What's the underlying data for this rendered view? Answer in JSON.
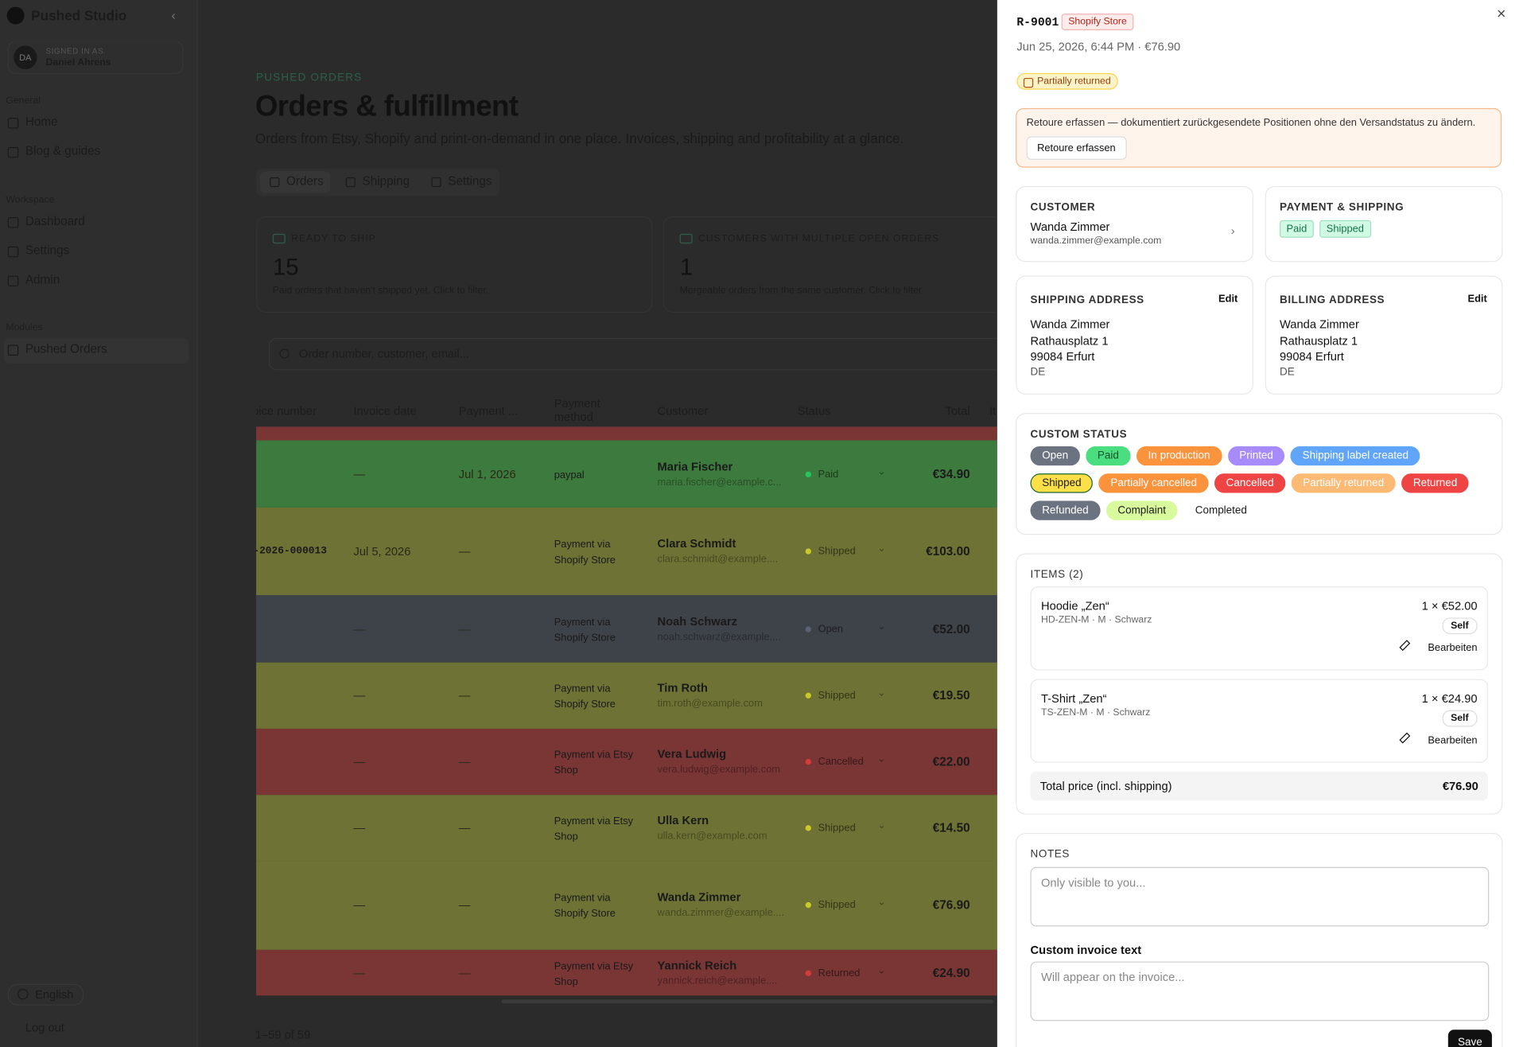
{
  "sidebar": {
    "brand": "Pushed Studio",
    "user": {
      "initials": "DA",
      "label": "SIGNED IN AS",
      "name": "Daniel Ahrens"
    },
    "groups": [
      {
        "title": "General",
        "items": [
          "Home",
          "Blog & guides"
        ]
      },
      {
        "title": "Workspace",
        "items": [
          "Dashboard",
          "Settings",
          "Admin"
        ]
      },
      {
        "title": "Modules",
        "items": [
          "Pushed Orders"
        ]
      }
    ],
    "language": "English",
    "logout": "Log out"
  },
  "main": {
    "eyebrow": "PUSHED ORDERS",
    "title": "Orders & fulfillment",
    "subtitle": "Orders from Etsy, Shopify and print-on-demand in one place. Invoices, shipping and profitability at a glance.",
    "tabs": [
      "Orders",
      "Shipping",
      "Settings"
    ],
    "stats": [
      {
        "label": "READY TO SHIP",
        "value": "15",
        "note": "Paid orders that haven't shipped yet. Click to filter."
      },
      {
        "label": "CUSTOMERS WITH MULTIPLE OPEN ORDERS",
        "value": "1",
        "note": "Mergeable orders from the same customer. Click to filter."
      }
    ],
    "search": "Order number, customer, email...",
    "table": {
      "columns": [
        "oice number",
        "Invoice date",
        "Payment ...",
        "Payment method",
        "Customer",
        "Status",
        "Total",
        "It"
      ],
      "rows": [
        {
          "color": "#3d7a3d",
          "date": "—",
          "paid": "Jul 1, 2026",
          "method": "paypal",
          "name": "Maria Fischer",
          "email": "maria.fischer@example.c...",
          "status": "Paid",
          "status_color": "#22c55e",
          "total": "€34.90"
        },
        {
          "color": "#6e7234",
          "invoice": "-2026-000013",
          "date": "Jul 5, 2026",
          "paid": "—",
          "method": "Payment via Shopify Store",
          "name": "Clara Schmidt",
          "email": "clara.schmidt@example....",
          "status": "Shipped",
          "status_color": "#c9c92a",
          "total": "€103.00"
        },
        {
          "color": "#3e4249",
          "date": "—",
          "paid": "—",
          "method": "Payment via Shopify Store",
          "name": "Noah Schwarz",
          "email": "noah.schwarz@example....",
          "status": "Open",
          "status_color": "#5b6270",
          "total": "€52.00"
        },
        {
          "color": "#6e7234",
          "date": "—",
          "paid": "—",
          "method": "Payment via Shopify Store",
          "name": "Tim Roth",
          "email": "tim.roth@example.com",
          "status": "Shipped",
          "status_color": "#c9c92a",
          "total": "€19.50"
        },
        {
          "color": "#7a3535",
          "date": "—",
          "paid": "—",
          "method": "Payment via Etsy Shop",
          "name": "Vera Ludwig",
          "email": "vera.ludwig@example.com",
          "status": "Cancelled",
          "status_color": "#d43b3b",
          "total": "€22.00"
        },
        {
          "color": "#6e7234",
          "date": "—",
          "paid": "—",
          "method": "Payment via Etsy Shop",
          "name": "Ulla Kern",
          "email": "ulla.kern@example.com",
          "status": "Shipped",
          "status_color": "#c9c92a",
          "total": "€14.50"
        },
        {
          "color": "#6e7234",
          "date": "—",
          "paid": "—",
          "method": "Payment via Shopify Store",
          "name": "Wanda Zimmer",
          "email": "wanda.zimmer@example....",
          "status": "Shipped",
          "status_color": "#c9c92a",
          "total": "€76.90"
        },
        {
          "color": "#7a3535",
          "date": "—",
          "paid": "—",
          "method": "Payment via Etsy Shop",
          "name": "Yannick Reich",
          "email": "yannick.reich@example....",
          "status": "Returned",
          "status_color": "#d43b3b",
          "total": "€24.90"
        }
      ],
      "footer": "1–59 of 59"
    }
  },
  "panel": {
    "order_id": "R-9001",
    "source": "Shopify Store",
    "meta": "Jun 25, 2026, 6:44 PM · €76.90",
    "return_status": "Partially returned",
    "notice": "Retoure erfassen — dokumentiert zurückgesendete Positionen ohne den Versandstatus zu ändern.",
    "notice_button": "Retoure erfassen",
    "customer": {
      "heading": "CUSTOMER",
      "name": "Wanda Zimmer",
      "email": "wanda.zimmer@example.com"
    },
    "payment": {
      "heading": "PAYMENT & SHIPPING",
      "badges": [
        "Paid",
        "Shipped"
      ]
    },
    "shipping_address": {
      "heading": "SHIPPING ADDRESS",
      "edit": "Edit",
      "lines": [
        "Wanda Zimmer",
        "Rathausplatz 1",
        "99084 Erfurt",
        "DE"
      ]
    },
    "billing_address": {
      "heading": "BILLING ADDRESS",
      "edit": "Edit",
      "lines": [
        "Wanda Zimmer",
        "Rathausplatz 1",
        "99084 Erfurt",
        "DE"
      ]
    },
    "custom_status": {
      "heading": "CUSTOM STATUS",
      "options": [
        {
          "label": "Open",
          "color": "#6b7280",
          "text": "#fff"
        },
        {
          "label": "Paid",
          "color": "#4ade80",
          "text": "#14532d"
        },
        {
          "label": "In production",
          "color": "#fb923c",
          "text": "#fff"
        },
        {
          "label": "Printed",
          "color": "#a78bfa",
          "text": "#fff"
        },
        {
          "label": "Shipping label created",
          "color": "#60a5fa",
          "text": "#fff"
        },
        {
          "label": "Shipped",
          "color": "#fde047",
          "text": "#1a1a1a",
          "selected": true
        },
        {
          "label": "Partially cancelled",
          "color": "#fb923c",
          "text": "#fff"
        },
        {
          "label": "Cancelled",
          "color": "#ef4444",
          "text": "#fff"
        },
        {
          "label": "Partially returned",
          "color": "#fdba74",
          "text": "#fff"
        },
        {
          "label": "Returned",
          "color": "#ef4444",
          "text": "#fff"
        },
        {
          "label": "Refunded",
          "color": "#6b7280",
          "text": "#fff"
        },
        {
          "label": "Complaint",
          "color": "#d9f99d",
          "text": "#1a1a1a"
        },
        {
          "label": "Completed",
          "color": "#ffffff",
          "text": "#1a1a1a"
        }
      ]
    },
    "items": {
      "heading": "ITEMS (2)",
      "list": [
        {
          "name": "Hoodie „Zen“",
          "sku": "HD-ZEN-M · M · Schwarz",
          "qty": "1 × €52.00",
          "tag": "Self",
          "edit": "Bearbeiten"
        },
        {
          "name": "T-Shirt „Zen“",
          "sku": "TS-ZEN-M · M · Schwarz",
          "qty": "1 × €24.90",
          "tag": "Self",
          "edit": "Bearbeiten"
        }
      ],
      "total_label": "Total price (incl. shipping)",
      "total_value": "€76.90"
    },
    "notes": {
      "heading": "NOTES",
      "placeholder": "Only visible to you..."
    },
    "invoice": {
      "label": "Custom invoice text",
      "placeholder": "Will appear on the invoice..."
    },
    "save": "Save"
  }
}
